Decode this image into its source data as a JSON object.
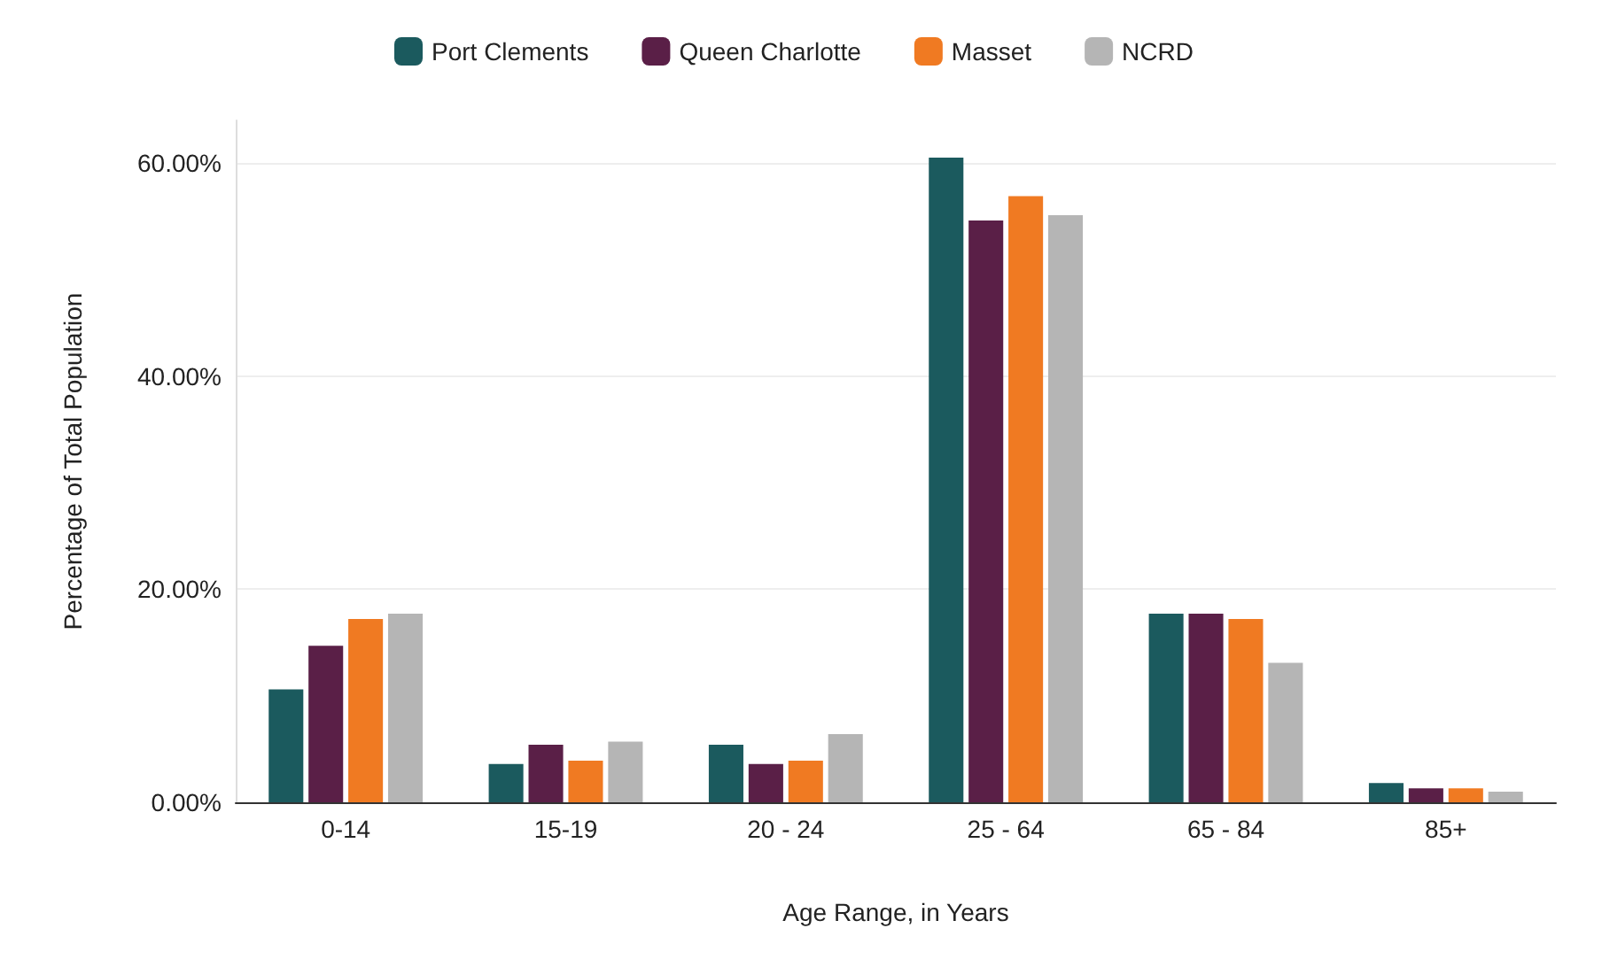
{
  "chart_data": {
    "type": "bar",
    "xlabel": "Age Range, in Years",
    "ylabel": "Percentage of Total Population",
    "categories": [
      "0-14",
      "15-19",
      "20 - 24",
      "25 - 64",
      "65 - 84",
      "85+"
    ],
    "series": [
      {
        "name": "Port Clements",
        "color": "#1b5a5e",
        "values": [
          10.6,
          3.6,
          5.4,
          60.5,
          17.7,
          1.8
        ]
      },
      {
        "name": "Queen Charlotte",
        "color": "#5a1f47",
        "values": [
          14.7,
          5.4,
          3.6,
          54.6,
          17.7,
          1.3
        ]
      },
      {
        "name": "Masset",
        "color": "#f07a22",
        "values": [
          17.2,
          3.9,
          3.9,
          56.9,
          17.2,
          1.3
        ]
      },
      {
        "name": "NCRD",
        "color": "#b5b5b5",
        "values": [
          17.7,
          5.7,
          6.4,
          55.1,
          13.1,
          1.0
        ]
      }
    ],
    "ylim": [
      0,
      64
    ],
    "yticks": [
      {
        "value": 0,
        "label": "0.00%"
      },
      {
        "value": 20,
        "label": "20.00%"
      },
      {
        "value": 40,
        "label": "40.00%"
      },
      {
        "value": 60,
        "label": "60.00%"
      }
    ],
    "grid": "y",
    "legend": "top"
  }
}
